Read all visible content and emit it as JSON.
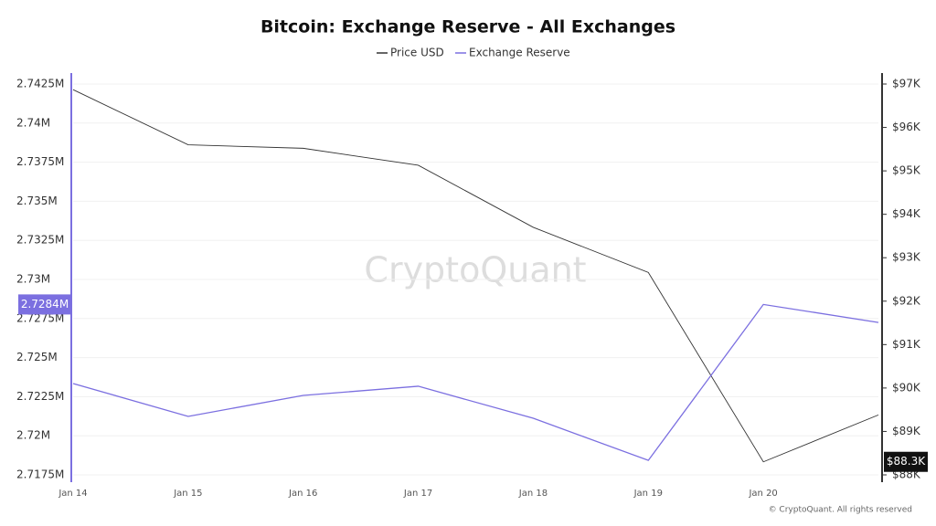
{
  "chart_data": {
    "type": "line",
    "title": "Bitcoin: Exchange Reserve - All Exchanges",
    "watermark": "CryptoQuant",
    "source": "© CryptoQuant. All rights reserved",
    "categories": [
      "Jan 14",
      "Jan 15",
      "Jan 16",
      "Jan 17",
      "Jan 18",
      "Jan 19",
      "Jan 20",
      null
    ],
    "series": [
      {
        "name": "Price USD",
        "color": "#333333",
        "axis": "y2",
        "values": [
          96870,
          95600,
          95520,
          95130,
          93700,
          92660,
          88300,
          89380
        ],
        "value_labels": [
          null,
          null,
          null,
          null,
          null,
          null,
          "$88.3K",
          null
        ]
      },
      {
        "name": "Exchange Reserve",
        "color": "#7b6fe0",
        "values": [
          2723340,
          2721240,
          2722580,
          2723170,
          2721120,
          2718430,
          2728400,
          2727250
        ],
        "value_labels": [
          null,
          null,
          null,
          null,
          null,
          null,
          "2.7284M",
          null
        ]
      }
    ],
    "ylim": [
      2717500,
      2742500
    ],
    "yticks": [
      {
        "value": 2717500,
        "label": "2.7175M"
      },
      {
        "value": 2720000,
        "label": "2.72M"
      },
      {
        "value": 2722500,
        "label": "2.7225M"
      },
      {
        "value": 2725000,
        "label": "2.725M"
      },
      {
        "value": 2727500,
        "label": "2.7275M"
      },
      {
        "value": 2730000,
        "label": "2.73M"
      },
      {
        "value": 2732500,
        "label": "2.7325M"
      },
      {
        "value": 2735000,
        "label": "2.735M"
      },
      {
        "value": 2737500,
        "label": "2.7375M"
      },
      {
        "value": 2740000,
        "label": "2.74M"
      },
      {
        "value": 2742500,
        "label": "2.7425M"
      }
    ],
    "y2lim": [
      88000,
      97000
    ],
    "y2ticks": [
      {
        "value": 88000,
        "label": "$88K"
      },
      {
        "value": 89000,
        "label": "$89K"
      },
      {
        "value": 90000,
        "label": "$90K"
      },
      {
        "value": 91000,
        "label": "$91K"
      },
      {
        "value": 92000,
        "label": "$92K"
      },
      {
        "value": 93000,
        "label": "$93K"
      },
      {
        "value": 94000,
        "label": "$94K"
      },
      {
        "value": 95000,
        "label": "$95K"
      },
      {
        "value": 96000,
        "label": "$96K"
      },
      {
        "value": 97000,
        "label": "$97K"
      }
    ],
    "grid": true
  }
}
